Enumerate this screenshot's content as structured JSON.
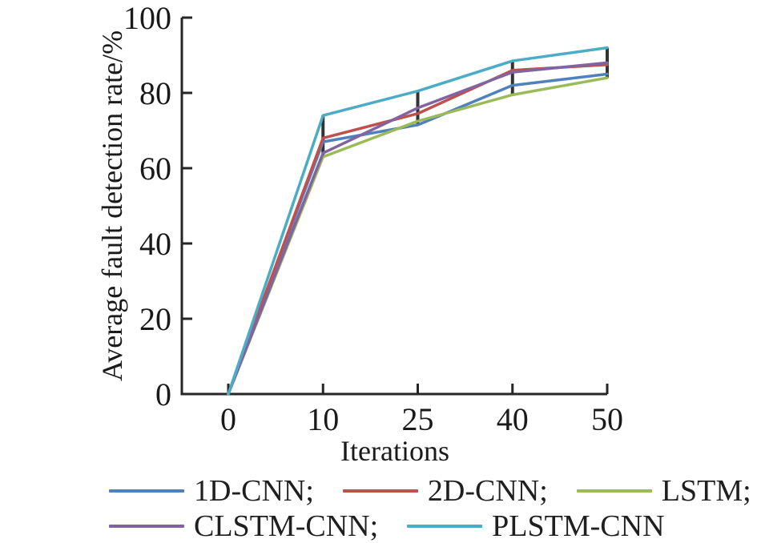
{
  "figure": {
    "background": "#ffffff",
    "axis_color": "#262626",
    "text_color": "#1a1a1a"
  },
  "chart_data": {
    "type": "line",
    "title": "",
    "xlabel": "Iterations",
    "ylabel": "Average fault detection rate/%",
    "x_values": [
      0,
      10,
      25,
      40,
      50
    ],
    "x_tick_labels": [
      "0",
      "10",
      "25",
      "40",
      "50"
    ],
    "x_spacing": "categorical-even",
    "y_ticks": [
      0,
      20,
      40,
      60,
      80,
      100
    ],
    "y_tick_labels": [
      "0",
      "20",
      "40",
      "60",
      "80",
      "100"
    ],
    "ylim": [
      0,
      100
    ],
    "grid": false,
    "legend_position": "below-two-rows",
    "series": [
      {
        "name": "1D-CNN",
        "legend_label": "1D-CNN;",
        "color": "#4f81bd",
        "values": [
          0,
          67,
          71.5,
          82,
          85
        ]
      },
      {
        "name": "2D-CNN",
        "legend_label": "2D-CNN;",
        "color": "#c0504d",
        "values": [
          0,
          68,
          74.5,
          86,
          87.5
        ]
      },
      {
        "name": "LSTM",
        "legend_label": "LSTM;",
        "color": "#9bbb59",
        "values": [
          0,
          63,
          72.5,
          79.5,
          84
        ]
      },
      {
        "name": "CLSTM-CNN",
        "legend_label": "CLSTM-CNN;",
        "color": "#8064a2",
        "values": [
          0,
          64,
          76,
          85.5,
          88
        ]
      },
      {
        "name": "PLSTM-CNN",
        "legend_label": "PLSTM-CNN",
        "color": "#4bacc6",
        "values": [
          0,
          74,
          80.5,
          88.5,
          92
        ]
      }
    ],
    "range_bars": {
      "color": "#333333",
      "points": [
        {
          "x": 10,
          "low": 63,
          "high": 74
        },
        {
          "x": 25,
          "low": 71.5,
          "high": 80.5
        },
        {
          "x": 40,
          "low": 79.5,
          "high": 88.5
        },
        {
          "x": 50,
          "low": 84,
          "high": 92
        }
      ]
    },
    "legend_rows": [
      [
        0,
        1,
        2
      ],
      [
        3,
        4
      ]
    ]
  }
}
